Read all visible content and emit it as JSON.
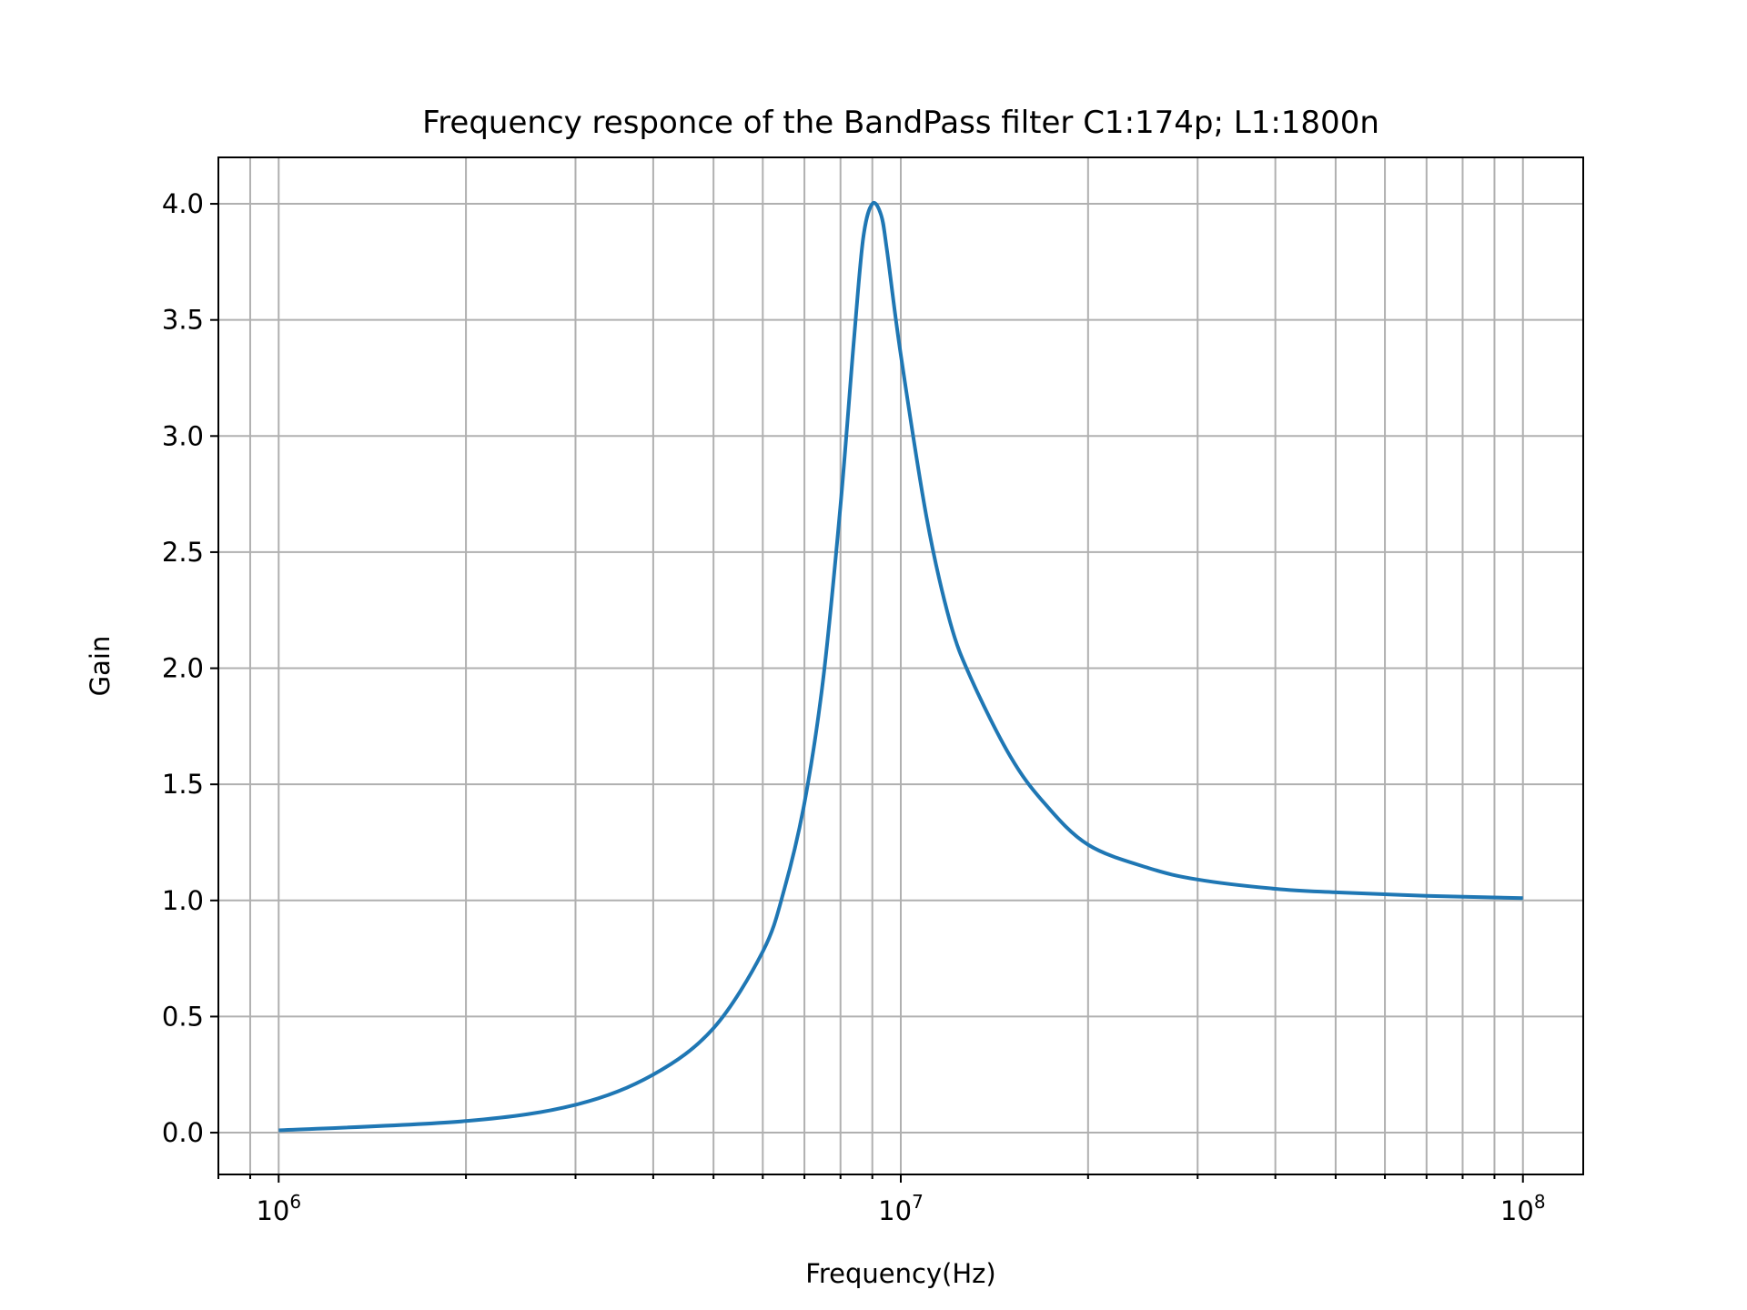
{
  "chart_data": {
    "type": "line",
    "title": "Frequency responce of the BandPass filter C1:174p; L1:1800n",
    "xlabel": "Frequency(Hz)",
    "ylabel": "Gain",
    "x_scale": "log",
    "xlim": [
      800000,
      125000000
    ],
    "ylim": [
      -0.18,
      4.2
    ],
    "grid": true,
    "x_tick_labels": [
      {
        "value": 1000000,
        "base": "10",
        "exp": "6"
      },
      {
        "value": 10000000,
        "base": "10",
        "exp": "7"
      },
      {
        "value": 100000000,
        "base": "10",
        "exp": "8"
      }
    ],
    "y_ticks": [
      0.0,
      0.5,
      1.0,
      1.5,
      2.0,
      2.5,
      3.0,
      3.5,
      4.0
    ],
    "y_tick_labels": [
      "0.0",
      "0.5",
      "1.0",
      "1.5",
      "2.0",
      "2.5",
      "3.0",
      "3.5",
      "4.0"
    ],
    "series": [
      {
        "color": "#1f77b4",
        "x": [
          1000000,
          2000000,
          3000000,
          4000000,
          5000000,
          6000000,
          6500000,
          7000000,
          7500000,
          8000000,
          8400000,
          8700000,
          9000000,
          9300000,
          9500000,
          10000000,
          11000000,
          12000000,
          13000000,
          15000000,
          17000000,
          20000000,
          25000000,
          30000000,
          40000000,
          50000000,
          70000000,
          100000000
        ],
        "y": [
          0.01,
          0.05,
          0.12,
          0.25,
          0.45,
          0.78,
          1.05,
          1.42,
          1.95,
          2.7,
          3.4,
          3.85,
          4.0,
          3.95,
          3.8,
          3.35,
          2.65,
          2.2,
          1.95,
          1.62,
          1.42,
          1.24,
          1.14,
          1.09,
          1.05,
          1.035,
          1.02,
          1.01
        ]
      }
    ]
  }
}
